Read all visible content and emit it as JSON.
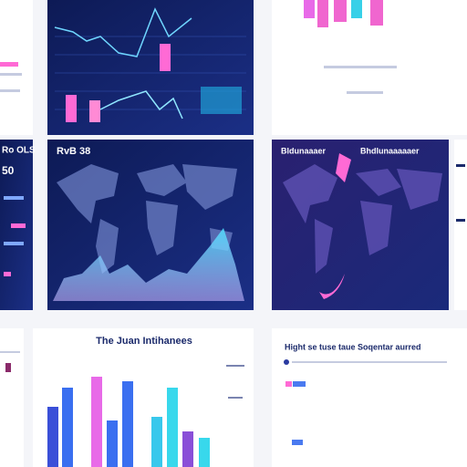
{
  "tiles": {
    "map_left": {
      "title": "RvB 38"
    },
    "side_left": {
      "title": "Ro OLS",
      "figure": "50"
    },
    "map_right": {
      "title": "Bldunaaaer",
      "subtitle": "Bhdlunaaaaaer"
    },
    "bars_center": {
      "title": "The Juan Intihanees"
    },
    "bars_right": {
      "title": "Hight se tuse taue Soqentar aurred"
    }
  }
}
